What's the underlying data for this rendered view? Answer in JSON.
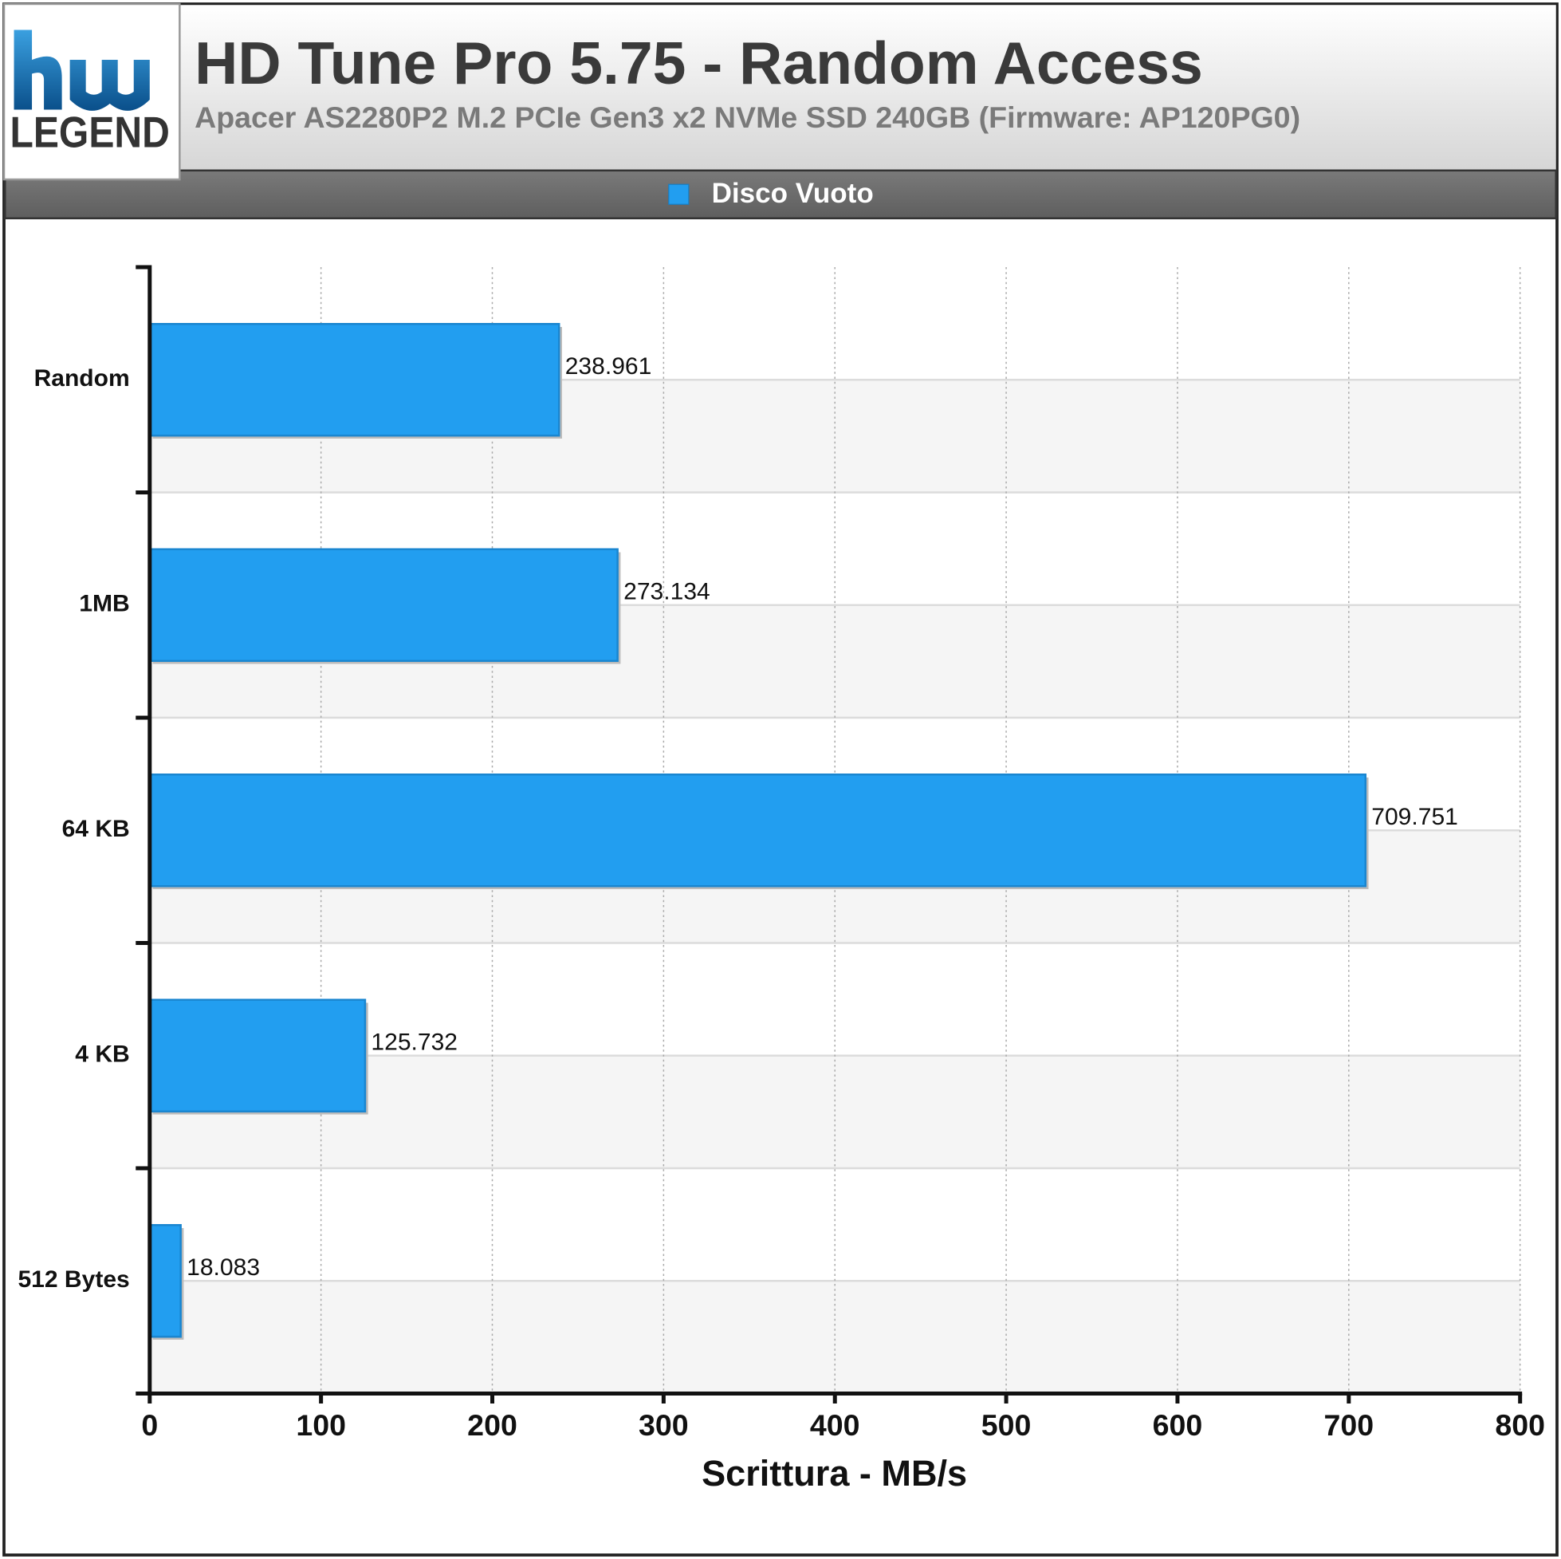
{
  "logo": {
    "text": "LEGEND"
  },
  "chart_data": {
    "type": "bar",
    "orientation": "horizontal",
    "title": "HD Tune Pro 5.75 - Random Access",
    "subtitle": "Apacer AS2280P2 M.2 PCIe Gen3 x2 NVMe SSD 240GB (Firmware: AP120PG0)",
    "categories": [
      "Random",
      "1MB",
      "64 KB",
      "4 KB",
      "512 Bytes"
    ],
    "series": [
      {
        "name": "Disco Vuoto",
        "color": "#229ef0",
        "values": [
          238.961,
          273.134,
          709.751,
          125.732,
          18.083
        ]
      }
    ],
    "xlim": [
      0,
      800
    ],
    "xticks": [
      0,
      100,
      200,
      300,
      400,
      500,
      600,
      700,
      800
    ],
    "x_label": "Scrittura - MB/s",
    "grid": true,
    "legend": "top"
  }
}
